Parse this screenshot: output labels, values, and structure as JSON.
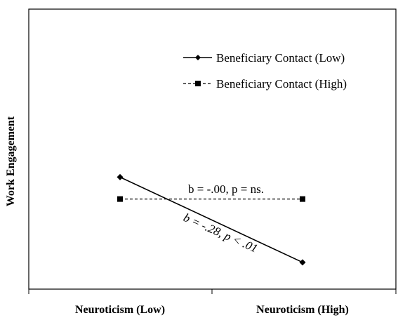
{
  "chart_data": {
    "type": "line",
    "categories": [
      "Neuroticism (Low)",
      "Neuroticism (High)"
    ],
    "ylabel": "Work Engagement",
    "series": [
      {
        "name": "Beneficiary Contact (Low)",
        "values": [
          0.31,
          -0.04
        ],
        "line_style": "solid",
        "marker": "diamond",
        "annotation": "b = -.28, p < .01"
      },
      {
        "name": "Beneficiary Contact (High)",
        "values": [
          0.22,
          0.22
        ],
        "line_style": "dashed",
        "marker": "square",
        "annotation": "b = -.00, p = ns."
      }
    ],
    "ylim": [
      -0.15,
      1.0
    ],
    "grid": false,
    "legend_position": "top-right",
    "color": "#000000"
  }
}
